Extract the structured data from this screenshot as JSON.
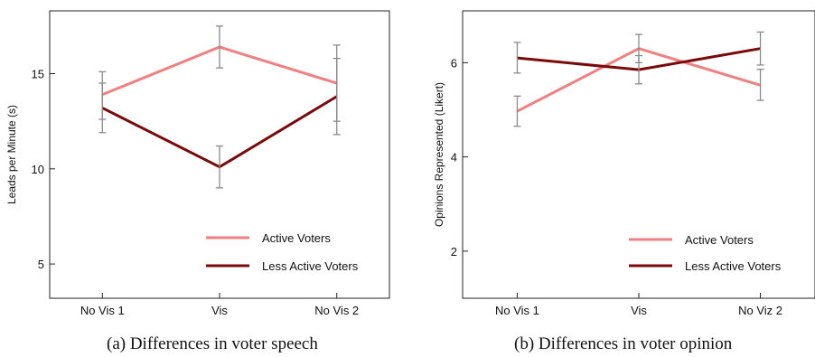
{
  "chart_data": [
    {
      "type": "line",
      "caption": "(a) Differences in voter speech",
      "ylabel": "Leads per Minute (s)",
      "xlabel": "",
      "categories": [
        "No Vis 1",
        "Vis",
        "No Vis 2"
      ],
      "ylim": [
        3.2,
        18.3
      ],
      "yticks": [
        5,
        10,
        15
      ],
      "grid": false,
      "legend_position": "bottom-right",
      "series": [
        {
          "name": "Active Voters",
          "color": "#f08080",
          "values": [
            13.9,
            16.4,
            14.5
          ],
          "err_low": [
            12.6,
            15.3,
            12.5
          ],
          "err_high": [
            15.1,
            17.5,
            16.5
          ]
        },
        {
          "name": "Less Active Voters",
          "color": "#7a0a0a",
          "values": [
            13.2,
            10.1,
            13.8
          ],
          "err_low": [
            11.9,
            9.0,
            11.8
          ],
          "err_high": [
            14.5,
            11.2,
            15.8
          ]
        }
      ]
    },
    {
      "type": "line",
      "caption": "(b) Differences in voter opinion",
      "ylabel": "Opinions Represented (Likert)",
      "xlabel": "",
      "categories": [
        "No Vis 1",
        "Vis",
        "No Viz 2"
      ],
      "ylim": [
        1.0,
        7.1
      ],
      "yticks": [
        2,
        4,
        6
      ],
      "grid": false,
      "legend_position": "bottom-right",
      "series": [
        {
          "name": "Active Voters",
          "color": "#f08080",
          "values": [
            4.97,
            6.3,
            5.52
          ],
          "err_low": [
            4.65,
            6.0,
            5.2
          ],
          "err_high": [
            5.29,
            6.6,
            5.86
          ]
        },
        {
          "name": "Less Active Voters",
          "color": "#7a0a0a",
          "values": [
            6.1,
            5.85,
            6.3
          ],
          "err_low": [
            5.78,
            5.55,
            5.95
          ],
          "err_high": [
            6.43,
            6.15,
            6.65
          ]
        }
      ]
    }
  ]
}
